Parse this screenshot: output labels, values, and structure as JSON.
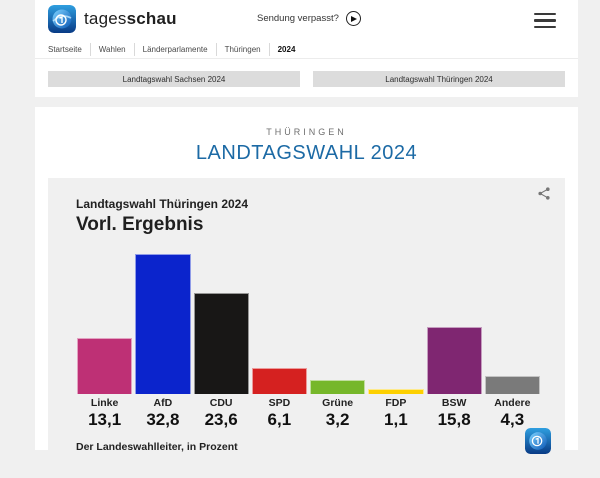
{
  "header": {
    "brand_regular": "tages",
    "brand_bold": "schau",
    "sendung_verpasst": "Sendung verpasst?",
    "breadcrumb": [
      "Startseite",
      "Wahlen",
      "Länderparlamente",
      "Thüringen",
      "2024"
    ]
  },
  "nav_buttons": [
    {
      "label": "Landtagswahl Sachsen 2024"
    },
    {
      "label": "Landtagswahl Thüringen 2024"
    }
  ],
  "page": {
    "kicker": "THÜRINGEN",
    "title": "LANDTAGSWAHL 2024",
    "title_color": "#1c6aa5"
  },
  "chart": {
    "supertitle": "Landtagswahl Thüringen 2024",
    "title": "Vorl. Ergebnis",
    "source": "Der Landeswahlleiter, in Prozent"
  },
  "chart_data": {
    "type": "bar",
    "title": "Landtagswahl Thüringen 2024 – Vorl. Ergebnis",
    "categories": [
      "Linke",
      "AfD",
      "CDU",
      "SPD",
      "Grüne",
      "FDP",
      "BSW",
      "Andere"
    ],
    "values": [
      13.1,
      32.8,
      23.6,
      6.1,
      3.2,
      1.1,
      15.8,
      4.3
    ],
    "value_labels": [
      "13,1",
      "32,8",
      "23,6",
      "6,1",
      "3,2",
      "1,1",
      "15,8",
      "4,3"
    ],
    "colors": [
      "#be3075",
      "#0b24cc",
      "#181716",
      "#d52120",
      "#76b72a",
      "#fdd000",
      "#7f2671",
      "#7a7a7a"
    ],
    "unit": "Prozent",
    "ylim": [
      0,
      35
    ],
    "grid": false,
    "legend": false
  }
}
